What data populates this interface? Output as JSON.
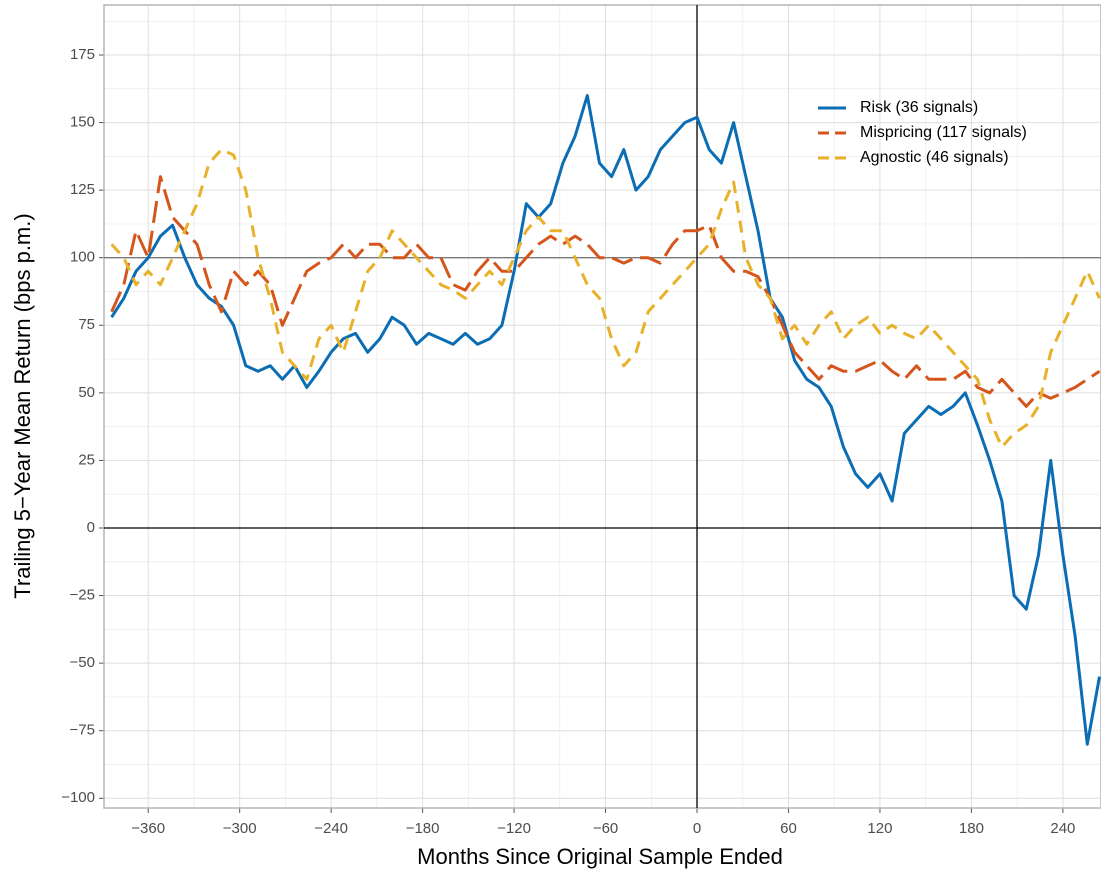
{
  "chart_data": {
    "type": "line",
    "x_label": "Months Since Original Sample Ended",
    "y_label": "Trailing 5−Year Mean Return (bps p.m.)",
    "x": [
      -384,
      -376,
      -368,
      -360,
      -352,
      -344,
      -336,
      -328,
      -320,
      -312,
      -304,
      -296,
      -288,
      -280,
      -272,
      -264,
      -256,
      -248,
      -240,
      -232,
      -224,
      -216,
      -208,
      -200,
      -192,
      -184,
      -176,
      -168,
      -160,
      -152,
      -144,
      -136,
      -128,
      -120,
      -112,
      -104,
      -96,
      -88,
      -80,
      -72,
      -64,
      -56,
      -48,
      -40,
      -32,
      -24,
      -16,
      -8,
      0,
      8,
      16,
      24,
      32,
      40,
      48,
      56,
      64,
      72,
      80,
      88,
      96,
      104,
      112,
      120,
      128,
      136,
      144,
      152,
      160,
      168,
      176,
      184,
      192,
      200,
      208,
      216,
      224,
      232,
      240,
      248,
      256,
      264
    ],
    "series": [
      {
        "name": "Risk (36 signals)",
        "color": "#0b6db3",
        "linestyle": "solid",
        "values": [
          78,
          85,
          95,
          100,
          108,
          112,
          100,
          90,
          85,
          82,
          75,
          60,
          58,
          60,
          55,
          60,
          52,
          58,
          65,
          70,
          72,
          65,
          70,
          78,
          75,
          68,
          72,
          70,
          68,
          72,
          68,
          70,
          75,
          95,
          120,
          115,
          120,
          135,
          145,
          160,
          135,
          130,
          140,
          125,
          130,
          140,
          145,
          150,
          152,
          140,
          135,
          150,
          130,
          110,
          85,
          78,
          62,
          55,
          52,
          45,
          30,
          20,
          15,
          20,
          10,
          35,
          40,
          45,
          42,
          45,
          50,
          38,
          25,
          10,
          -25,
          -30,
          -10,
          25,
          -10,
          -40,
          -80,
          -55
        ]
      },
      {
        "name": "Mispricing (117 signals)",
        "color": "#d5561c",
        "linestyle": "longdash",
        "values": [
          80,
          90,
          110,
          100,
          130,
          115,
          110,
          105,
          90,
          80,
          95,
          90,
          95,
          90,
          75,
          85,
          95,
          98,
          100,
          105,
          100,
          105,
          105,
          100,
          100,
          105,
          100,
          100,
          90,
          88,
          95,
          100,
          95,
          95,
          100,
          105,
          108,
          105,
          108,
          105,
          100,
          100,
          98,
          100,
          100,
          98,
          105,
          110,
          110,
          112,
          100,
          95,
          95,
          93,
          85,
          75,
          65,
          60,
          55,
          60,
          58,
          58,
          60,
          62,
          58,
          55,
          60,
          55,
          55,
          55,
          58,
          52,
          50,
          55,
          50,
          45,
          50,
          48,
          50,
          52,
          55,
          58
        ]
      },
      {
        "name": "Agnostic (46 signals)",
        "color": "#e8b12a",
        "linestyle": "dashed",
        "values": [
          105,
          100,
          90,
          95,
          90,
          100,
          110,
          120,
          135,
          140,
          138,
          125,
          100,
          85,
          65,
          60,
          55,
          70,
          75,
          65,
          80,
          95,
          100,
          110,
          105,
          100,
          95,
          90,
          88,
          85,
          90,
          95,
          90,
          100,
          110,
          115,
          110,
          110,
          100,
          90,
          85,
          70,
          60,
          65,
          80,
          85,
          90,
          95,
          100,
          105,
          118,
          128,
          100,
          90,
          85,
          70,
          75,
          68,
          75,
          80,
          70,
          75,
          78,
          72,
          75,
          72,
          70,
          75,
          70,
          65,
          60,
          55,
          40,
          30,
          35,
          38,
          45,
          65,
          75,
          85,
          95,
          85
        ]
      }
    ],
    "xlim": [
      -389,
      265
    ],
    "ylim": [
      -103.6,
      193.5
    ],
    "xticks": [
      {
        "value": -360,
        "label": "−360"
      },
      {
        "value": -300,
        "label": "−300"
      },
      {
        "value": -240,
        "label": "−240"
      },
      {
        "value": -180,
        "label": "−180"
      },
      {
        "value": -120,
        "label": "−120"
      },
      {
        "value": -60,
        "label": "−60"
      },
      0,
      60,
      120,
      180,
      240
    ],
    "yticks": [
      {
        "value": -100,
        "label": "−100"
      },
      {
        "value": -75,
        "label": "−75"
      },
      {
        "value": -50,
        "label": "−50"
      },
      {
        "value": -25,
        "label": "−25"
      },
      0,
      25,
      50,
      75,
      100,
      125,
      150,
      175
    ],
    "hlines": [
      {
        "value": 0,
        "color": "#000000"
      },
      {
        "value": 100,
        "color": "#7a7a7a"
      }
    ],
    "vlines": [
      {
        "value": 0,
        "color": "#000000"
      }
    ],
    "grid": true,
    "legend": "top-right"
  }
}
